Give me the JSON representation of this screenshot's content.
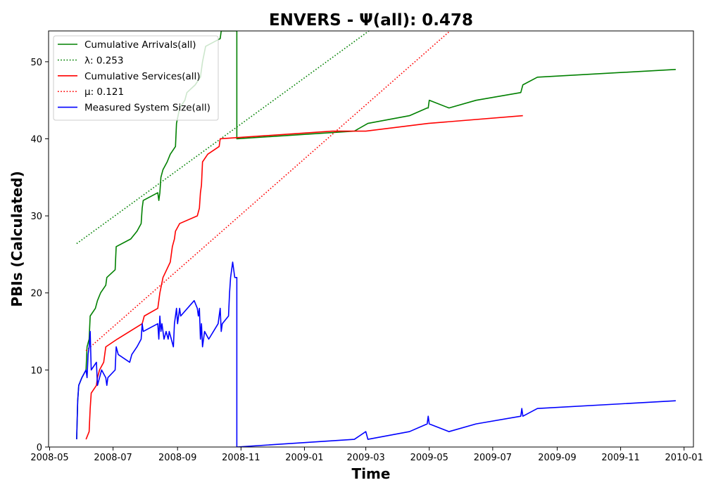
{
  "chart_data": {
    "type": "line",
    "title": "ENVERS -  Ψ(all): 0.478",
    "xlabel": "Time",
    "ylabel": "PBIs (Calculated)",
    "x_axis_type": "date",
    "xlim": [
      "2008-04-30",
      "2010-01-10"
    ],
    "ylim": [
      0,
      54
    ],
    "x_ticks": [
      "2008-05",
      "2008-07",
      "2008-09",
      "2008-11",
      "2009-01",
      "2009-03",
      "2009-05",
      "2009-07",
      "2009-09",
      "2009-11",
      "2010-01"
    ],
    "y_ticks": [
      0,
      10,
      20,
      30,
      40,
      50
    ],
    "grid": false,
    "legend_position": "top-left",
    "series": [
      {
        "name": "Cumulative Arrivals(all)",
        "color": "#008000",
        "style": "solid",
        "points": [
          [
            "2008-05-27",
            1
          ],
          [
            "2008-05-28",
            6
          ],
          [
            "2008-05-29",
            8
          ],
          [
            "2008-06-01",
            9
          ],
          [
            "2008-06-05",
            10
          ],
          [
            "2008-06-06",
            13
          ],
          [
            "2008-06-08",
            14
          ],
          [
            "2008-06-09",
            17
          ],
          [
            "2008-06-14",
            18
          ],
          [
            "2008-06-16",
            19
          ],
          [
            "2008-06-19",
            20
          ],
          [
            "2008-06-24",
            21
          ],
          [
            "2008-06-25",
            22
          ],
          [
            "2008-07-03",
            23
          ],
          [
            "2008-07-04",
            26
          ],
          [
            "2008-07-18",
            27
          ],
          [
            "2008-07-24",
            28
          ],
          [
            "2008-07-28",
            29
          ],
          [
            "2008-07-29",
            31
          ],
          [
            "2008-07-30",
            32
          ],
          [
            "2008-08-13",
            33
          ],
          [
            "2008-08-14",
            32
          ],
          [
            "2008-08-15",
            33
          ],
          [
            "2008-08-16",
            35
          ],
          [
            "2008-08-18",
            36
          ],
          [
            "2008-08-22",
            37
          ],
          [
            "2008-08-25",
            38
          ],
          [
            "2008-08-30",
            39
          ],
          [
            "2008-08-31",
            42
          ],
          [
            "2008-09-03",
            44
          ],
          [
            "2008-09-08",
            45
          ],
          [
            "2008-09-10",
            46
          ],
          [
            "2008-09-18",
            47
          ],
          [
            "2008-09-23",
            48
          ],
          [
            "2008-09-25",
            50
          ],
          [
            "2008-09-28",
            52
          ],
          [
            "2008-10-12",
            53
          ],
          [
            "2008-10-13",
            54
          ],
          [
            "2008-10-28",
            54
          ],
          [
            "2008-10-28",
            40
          ],
          [
            "2009-02-18",
            41
          ],
          [
            "2009-03-03",
            42
          ],
          [
            "2009-04-12",
            43
          ],
          [
            "2009-04-29",
            44
          ],
          [
            "2009-04-30",
            44
          ],
          [
            "2009-05-01",
            45
          ],
          [
            "2009-05-20",
            44
          ],
          [
            "2009-06-15",
            45
          ],
          [
            "2009-07-28",
            46
          ],
          [
            "2009-07-30",
            47
          ],
          [
            "2009-08-13",
            48
          ],
          [
            "2009-12-24",
            49
          ]
        ]
      },
      {
        "name": "λ: 0.253",
        "color": "#008000",
        "style": "dotted",
        "points": [
          [
            "2008-05-27",
            26.4
          ],
          [
            "2009-03-04",
            54
          ]
        ]
      },
      {
        "name": "Cumulative Services(all)",
        "color": "#ff0000",
        "style": "solid",
        "points": [
          [
            "2008-06-05",
            1
          ],
          [
            "2008-06-08",
            2
          ],
          [
            "2008-06-09",
            5
          ],
          [
            "2008-06-10",
            7
          ],
          [
            "2008-06-15",
            8
          ],
          [
            "2008-06-16",
            9
          ],
          [
            "2008-06-18",
            10
          ],
          [
            "2008-06-22",
            11
          ],
          [
            "2008-06-24",
            13
          ],
          [
            "2008-07-05",
            14
          ],
          [
            "2008-07-17",
            15
          ],
          [
            "2008-07-29",
            16
          ],
          [
            "2008-07-31",
            17
          ],
          [
            "2008-08-13",
            18
          ],
          [
            "2008-08-15",
            20
          ],
          [
            "2008-08-18",
            22
          ],
          [
            "2008-08-25",
            24
          ],
          [
            "2008-08-27",
            26
          ],
          [
            "2008-08-29",
            27
          ],
          [
            "2008-08-30",
            28
          ],
          [
            "2008-09-03",
            29
          ],
          [
            "2008-09-20",
            30
          ],
          [
            "2008-09-22",
            31
          ],
          [
            "2008-09-23",
            33
          ],
          [
            "2008-09-24",
            34
          ],
          [
            "2008-09-25",
            37
          ],
          [
            "2008-09-30",
            38
          ],
          [
            "2008-10-11",
            39
          ],
          [
            "2008-10-12",
            40
          ],
          [
            "2009-01-28",
            41
          ],
          [
            "2009-03-01",
            41
          ],
          [
            "2009-04-30",
            42
          ],
          [
            "2009-07-30",
            43
          ]
        ]
      },
      {
        "name": "μ: 0.121",
        "color": "#ff0000",
        "style": "dotted",
        "points": [
          [
            "2008-06-05",
            12.5
          ],
          [
            "2009-05-21",
            54
          ]
        ]
      },
      {
        "name": "Measured System Size(all)",
        "color": "#0000ff",
        "style": "solid",
        "points": [
          [
            "2008-05-27",
            1
          ],
          [
            "2008-05-28",
            6
          ],
          [
            "2008-05-29",
            8
          ],
          [
            "2008-06-01",
            9
          ],
          [
            "2008-06-05",
            10
          ],
          [
            "2008-06-06",
            9
          ],
          [
            "2008-06-07",
            12
          ],
          [
            "2008-06-08",
            13
          ],
          [
            "2008-06-09",
            15
          ],
          [
            "2008-06-10",
            10
          ],
          [
            "2008-06-15",
            11
          ],
          [
            "2008-06-16",
            8
          ],
          [
            "2008-06-18",
            9
          ],
          [
            "2008-06-20",
            10
          ],
          [
            "2008-06-24",
            9
          ],
          [
            "2008-06-25",
            8
          ],
          [
            "2008-06-26",
            9
          ],
          [
            "2008-07-03",
            10
          ],
          [
            "2008-07-04",
            13
          ],
          [
            "2008-07-06",
            12
          ],
          [
            "2008-07-17",
            11
          ],
          [
            "2008-07-19",
            12
          ],
          [
            "2008-07-24",
            13
          ],
          [
            "2008-07-28",
            14
          ],
          [
            "2008-07-29",
            16
          ],
          [
            "2008-07-30",
            15
          ],
          [
            "2008-08-13",
            16
          ],
          [
            "2008-08-14",
            14
          ],
          [
            "2008-08-15",
            17
          ],
          [
            "2008-08-16",
            15
          ],
          [
            "2008-08-17",
            16
          ],
          [
            "2008-08-19",
            14
          ],
          [
            "2008-08-21",
            15
          ],
          [
            "2008-08-23",
            14
          ],
          [
            "2008-08-24",
            15
          ],
          [
            "2008-08-26",
            14
          ],
          [
            "2008-08-28",
            13
          ],
          [
            "2008-08-29",
            16
          ],
          [
            "2008-08-30",
            17
          ],
          [
            "2008-08-31",
            18
          ],
          [
            "2008-09-01",
            16
          ],
          [
            "2008-09-03",
            18
          ],
          [
            "2008-09-04",
            17
          ],
          [
            "2008-09-17",
            19
          ],
          [
            "2008-09-20",
            18
          ],
          [
            "2008-09-21",
            17
          ],
          [
            "2008-09-22",
            18
          ],
          [
            "2008-09-23",
            14
          ],
          [
            "2008-09-24",
            16
          ],
          [
            "2008-09-25",
            13
          ],
          [
            "2008-09-27",
            15
          ],
          [
            "2008-10-01",
            14
          ],
          [
            "2008-10-10",
            16
          ],
          [
            "2008-10-11",
            17
          ],
          [
            "2008-10-12",
            18
          ],
          [
            "2008-10-13",
            15
          ],
          [
            "2008-10-14",
            16
          ],
          [
            "2008-10-20",
            17
          ],
          [
            "2008-10-21",
            20
          ],
          [
            "2008-10-22",
            22
          ],
          [
            "2008-10-24",
            24
          ],
          [
            "2008-10-26",
            22
          ],
          [
            "2008-10-28",
            22
          ],
          [
            "2008-10-28",
            0
          ],
          [
            "2009-02-18",
            1
          ],
          [
            "2009-03-01",
            2
          ],
          [
            "2009-03-03",
            1
          ],
          [
            "2009-04-12",
            2
          ],
          [
            "2009-04-29",
            3
          ],
          [
            "2009-04-30",
            4
          ],
          [
            "2009-05-01",
            3
          ],
          [
            "2009-05-20",
            2
          ],
          [
            "2009-06-15",
            3
          ],
          [
            "2009-07-28",
            4
          ],
          [
            "2009-07-29",
            5
          ],
          [
            "2009-07-30",
            4
          ],
          [
            "2009-08-13",
            5
          ],
          [
            "2009-12-24",
            6
          ]
        ]
      }
    ]
  }
}
